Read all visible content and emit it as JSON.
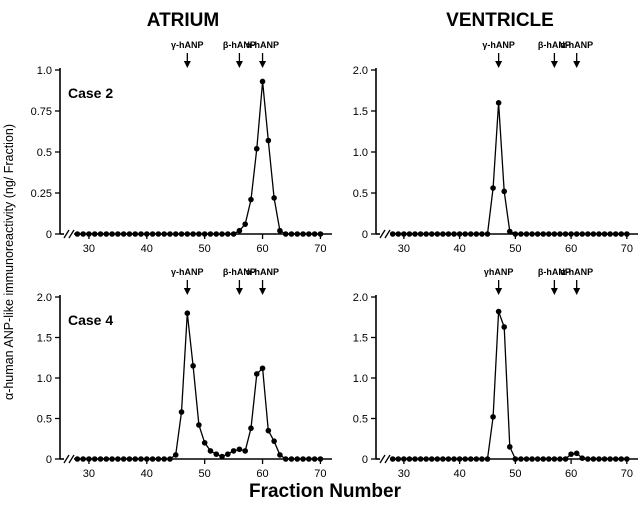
{
  "figure": {
    "col_titles": [
      "ATRIUM",
      "VENTRICLE"
    ],
    "ylabel": "α-human ANP-like immunoreactivity (ng/ Fraction)",
    "xlabel": "Fraction Number",
    "colors": {
      "ink": "#000000",
      "background": "#ffffff"
    }
  },
  "chart_data": [
    {
      "type": "line",
      "panel": "Atrium",
      "case_label": "Case 2",
      "ylim": [
        0,
        1.0
      ],
      "yticks": [
        0,
        0.25,
        0.5,
        0.75,
        1.0
      ],
      "ytick_labels": [
        "0",
        "0.25",
        "0.5",
        "0.75",
        "1.0"
      ],
      "xlim": [
        25,
        72
      ],
      "xticks": [
        30,
        40,
        50,
        60,
        70
      ],
      "markers": [
        {
          "label": "γ-hANP",
          "x": 47
        },
        {
          "label": "β-hANP",
          "x": 56
        },
        {
          "label": "α-hANP",
          "x": 60
        }
      ],
      "x": [
        28,
        29,
        30,
        31,
        32,
        33,
        34,
        35,
        36,
        37,
        38,
        39,
        40,
        41,
        42,
        43,
        44,
        45,
        46,
        47,
        48,
        49,
        50,
        51,
        52,
        53,
        54,
        55,
        56,
        57,
        58,
        59,
        60,
        61,
        62,
        63,
        64,
        65,
        66,
        67,
        68,
        69,
        70
      ],
      "values": [
        0,
        0,
        0,
        0,
        0,
        0,
        0,
        0,
        0,
        0,
        0,
        0,
        0,
        0,
        0,
        0,
        0,
        0,
        0,
        0,
        0,
        0,
        0,
        0,
        0,
        0,
        0,
        0,
        0.02,
        0.06,
        0.21,
        0.52,
        0.93,
        0.57,
        0.22,
        0.02,
        0,
        0,
        0,
        0,
        0,
        0,
        0
      ]
    },
    {
      "type": "line",
      "panel": "Ventricle",
      "case_label": "",
      "ylim": [
        0,
        2.0
      ],
      "yticks": [
        0,
        0.5,
        1.0,
        1.5,
        2.0
      ],
      "ytick_labels": [
        "0",
        "0.5",
        "1.0",
        "1.5",
        "2.0"
      ],
      "xlim": [
        25,
        72
      ],
      "xticks": [
        30,
        40,
        50,
        60,
        70
      ],
      "markers": [
        {
          "label": "γ-hANP",
          "x": 47
        },
        {
          "label": "β-hANP",
          "x": 57
        },
        {
          "label": "α-hANP",
          "x": 61
        }
      ],
      "x": [
        28,
        29,
        30,
        31,
        32,
        33,
        34,
        35,
        36,
        37,
        38,
        39,
        40,
        41,
        42,
        43,
        44,
        45,
        46,
        47,
        48,
        49,
        50,
        51,
        52,
        53,
        54,
        55,
        56,
        57,
        58,
        59,
        60,
        61,
        62,
        63,
        64,
        65,
        66,
        67,
        68,
        69,
        70
      ],
      "values": [
        0,
        0,
        0,
        0,
        0,
        0,
        0,
        0,
        0,
        0,
        0,
        0,
        0,
        0,
        0,
        0,
        0,
        0,
        0.56,
        1.6,
        0.52,
        0.03,
        0,
        0,
        0,
        0,
        0,
        0,
        0,
        0,
        0,
        0,
        0,
        0,
        0,
        0,
        0,
        0,
        0,
        0,
        0,
        0,
        0
      ]
    },
    {
      "type": "line",
      "panel": "Atrium",
      "case_label": "Case 4",
      "ylim": [
        0,
        2.0
      ],
      "yticks": [
        0,
        0.5,
        1.0,
        1.5,
        2.0
      ],
      "ytick_labels": [
        "0",
        "0.5",
        "1.0",
        "1.5",
        "2.0"
      ],
      "xlim": [
        25,
        72
      ],
      "xticks": [
        30,
        40,
        50,
        60,
        70
      ],
      "markers": [
        {
          "label": "γ-hANP",
          "x": 47
        },
        {
          "label": "β-hANP",
          "x": 56
        },
        {
          "label": "α-hANP",
          "x": 60
        }
      ],
      "x": [
        28,
        29,
        30,
        31,
        32,
        33,
        34,
        35,
        36,
        37,
        38,
        39,
        40,
        41,
        42,
        43,
        44,
        45,
        46,
        47,
        48,
        49,
        50,
        51,
        52,
        53,
        54,
        55,
        56,
        57,
        58,
        59,
        60,
        61,
        62,
        63,
        64,
        65,
        66,
        67,
        68,
        69,
        70
      ],
      "values": [
        0,
        0,
        0,
        0,
        0,
        0,
        0,
        0,
        0,
        0,
        0,
        0,
        0,
        0,
        0,
        0,
        0,
        0.05,
        0.58,
        1.8,
        1.15,
        0.42,
        0.2,
        0.1,
        0.06,
        0.03,
        0.06,
        0.1,
        0.12,
        0.1,
        0.38,
        1.05,
        1.12,
        0.35,
        0.22,
        0.05,
        0,
        0,
        0,
        0,
        0,
        0,
        0
      ]
    },
    {
      "type": "line",
      "panel": "Ventricle",
      "case_label": "",
      "ylim": [
        0,
        2.0
      ],
      "yticks": [
        0,
        0.5,
        1.0,
        1.5,
        2.0
      ],
      "ytick_labels": [
        "0",
        "0.5",
        "1.0",
        "1.5",
        "2.0"
      ],
      "xlim": [
        25,
        72
      ],
      "xticks": [
        30,
        40,
        50,
        60,
        70
      ],
      "markers": [
        {
          "label": "γhANP",
          "x": 47
        },
        {
          "label": "β-hANP",
          "x": 57
        },
        {
          "label": "α-hANP",
          "x": 61
        }
      ],
      "x": [
        28,
        29,
        30,
        31,
        32,
        33,
        34,
        35,
        36,
        37,
        38,
        39,
        40,
        41,
        42,
        43,
        44,
        45,
        46,
        47,
        48,
        49,
        50,
        51,
        52,
        53,
        54,
        55,
        56,
        57,
        58,
        59,
        60,
        61,
        62,
        63,
        64,
        65,
        66,
        67,
        68,
        69,
        70
      ],
      "values": [
        0,
        0,
        0,
        0,
        0,
        0,
        0,
        0,
        0,
        0,
        0,
        0,
        0,
        0,
        0,
        0,
        0,
        0,
        0.52,
        1.82,
        1.63,
        0.15,
        0,
        0,
        0,
        0,
        0,
        0,
        0,
        0,
        0,
        0,
        0.06,
        0.07,
        0.01,
        0,
        0,
        0,
        0,
        0,
        0,
        0,
        0
      ]
    }
  ]
}
